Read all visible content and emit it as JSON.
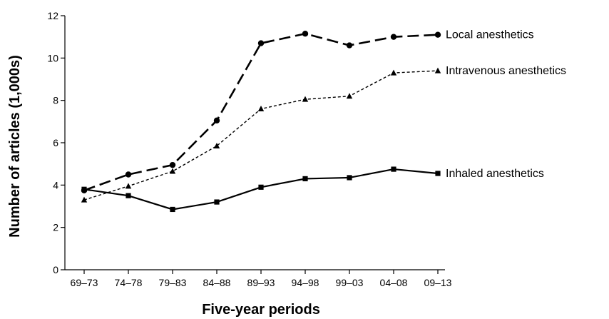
{
  "chart_data": {
    "type": "line",
    "title": "",
    "xlabel": "Five-year periods",
    "ylabel": "Number of articles (1,000s)",
    "categories": [
      "69–73",
      "74–78",
      "79–83",
      "84–88",
      "89–93",
      "94–98",
      "99–03",
      "04–08",
      "09–13"
    ],
    "ylim": [
      0,
      12
    ],
    "yticks": [
      0,
      2,
      4,
      6,
      8,
      10,
      12
    ],
    "grid": false,
    "legend": "direct labels at line ends",
    "series": [
      {
        "name": "Local anesthetics",
        "marker": "circle",
        "line_style": "long-dash",
        "values": [
          3.75,
          4.5,
          4.95,
          7.05,
          10.7,
          11.15,
          10.6,
          11.0,
          11.1
        ]
      },
      {
        "name": "Intravenous anesthetics",
        "marker": "triangle",
        "line_style": "short-dash",
        "values": [
          3.3,
          3.95,
          4.65,
          5.85,
          7.6,
          8.05,
          8.2,
          9.3,
          9.4
        ]
      },
      {
        "name": "Inhaled anesthetics",
        "marker": "square",
        "line_style": "solid",
        "values": [
          3.8,
          3.5,
          2.85,
          3.2,
          3.9,
          4.3,
          4.35,
          4.75,
          4.55
        ]
      }
    ],
    "colors": {
      "line": "#000000",
      "background": "#ffffff"
    }
  }
}
